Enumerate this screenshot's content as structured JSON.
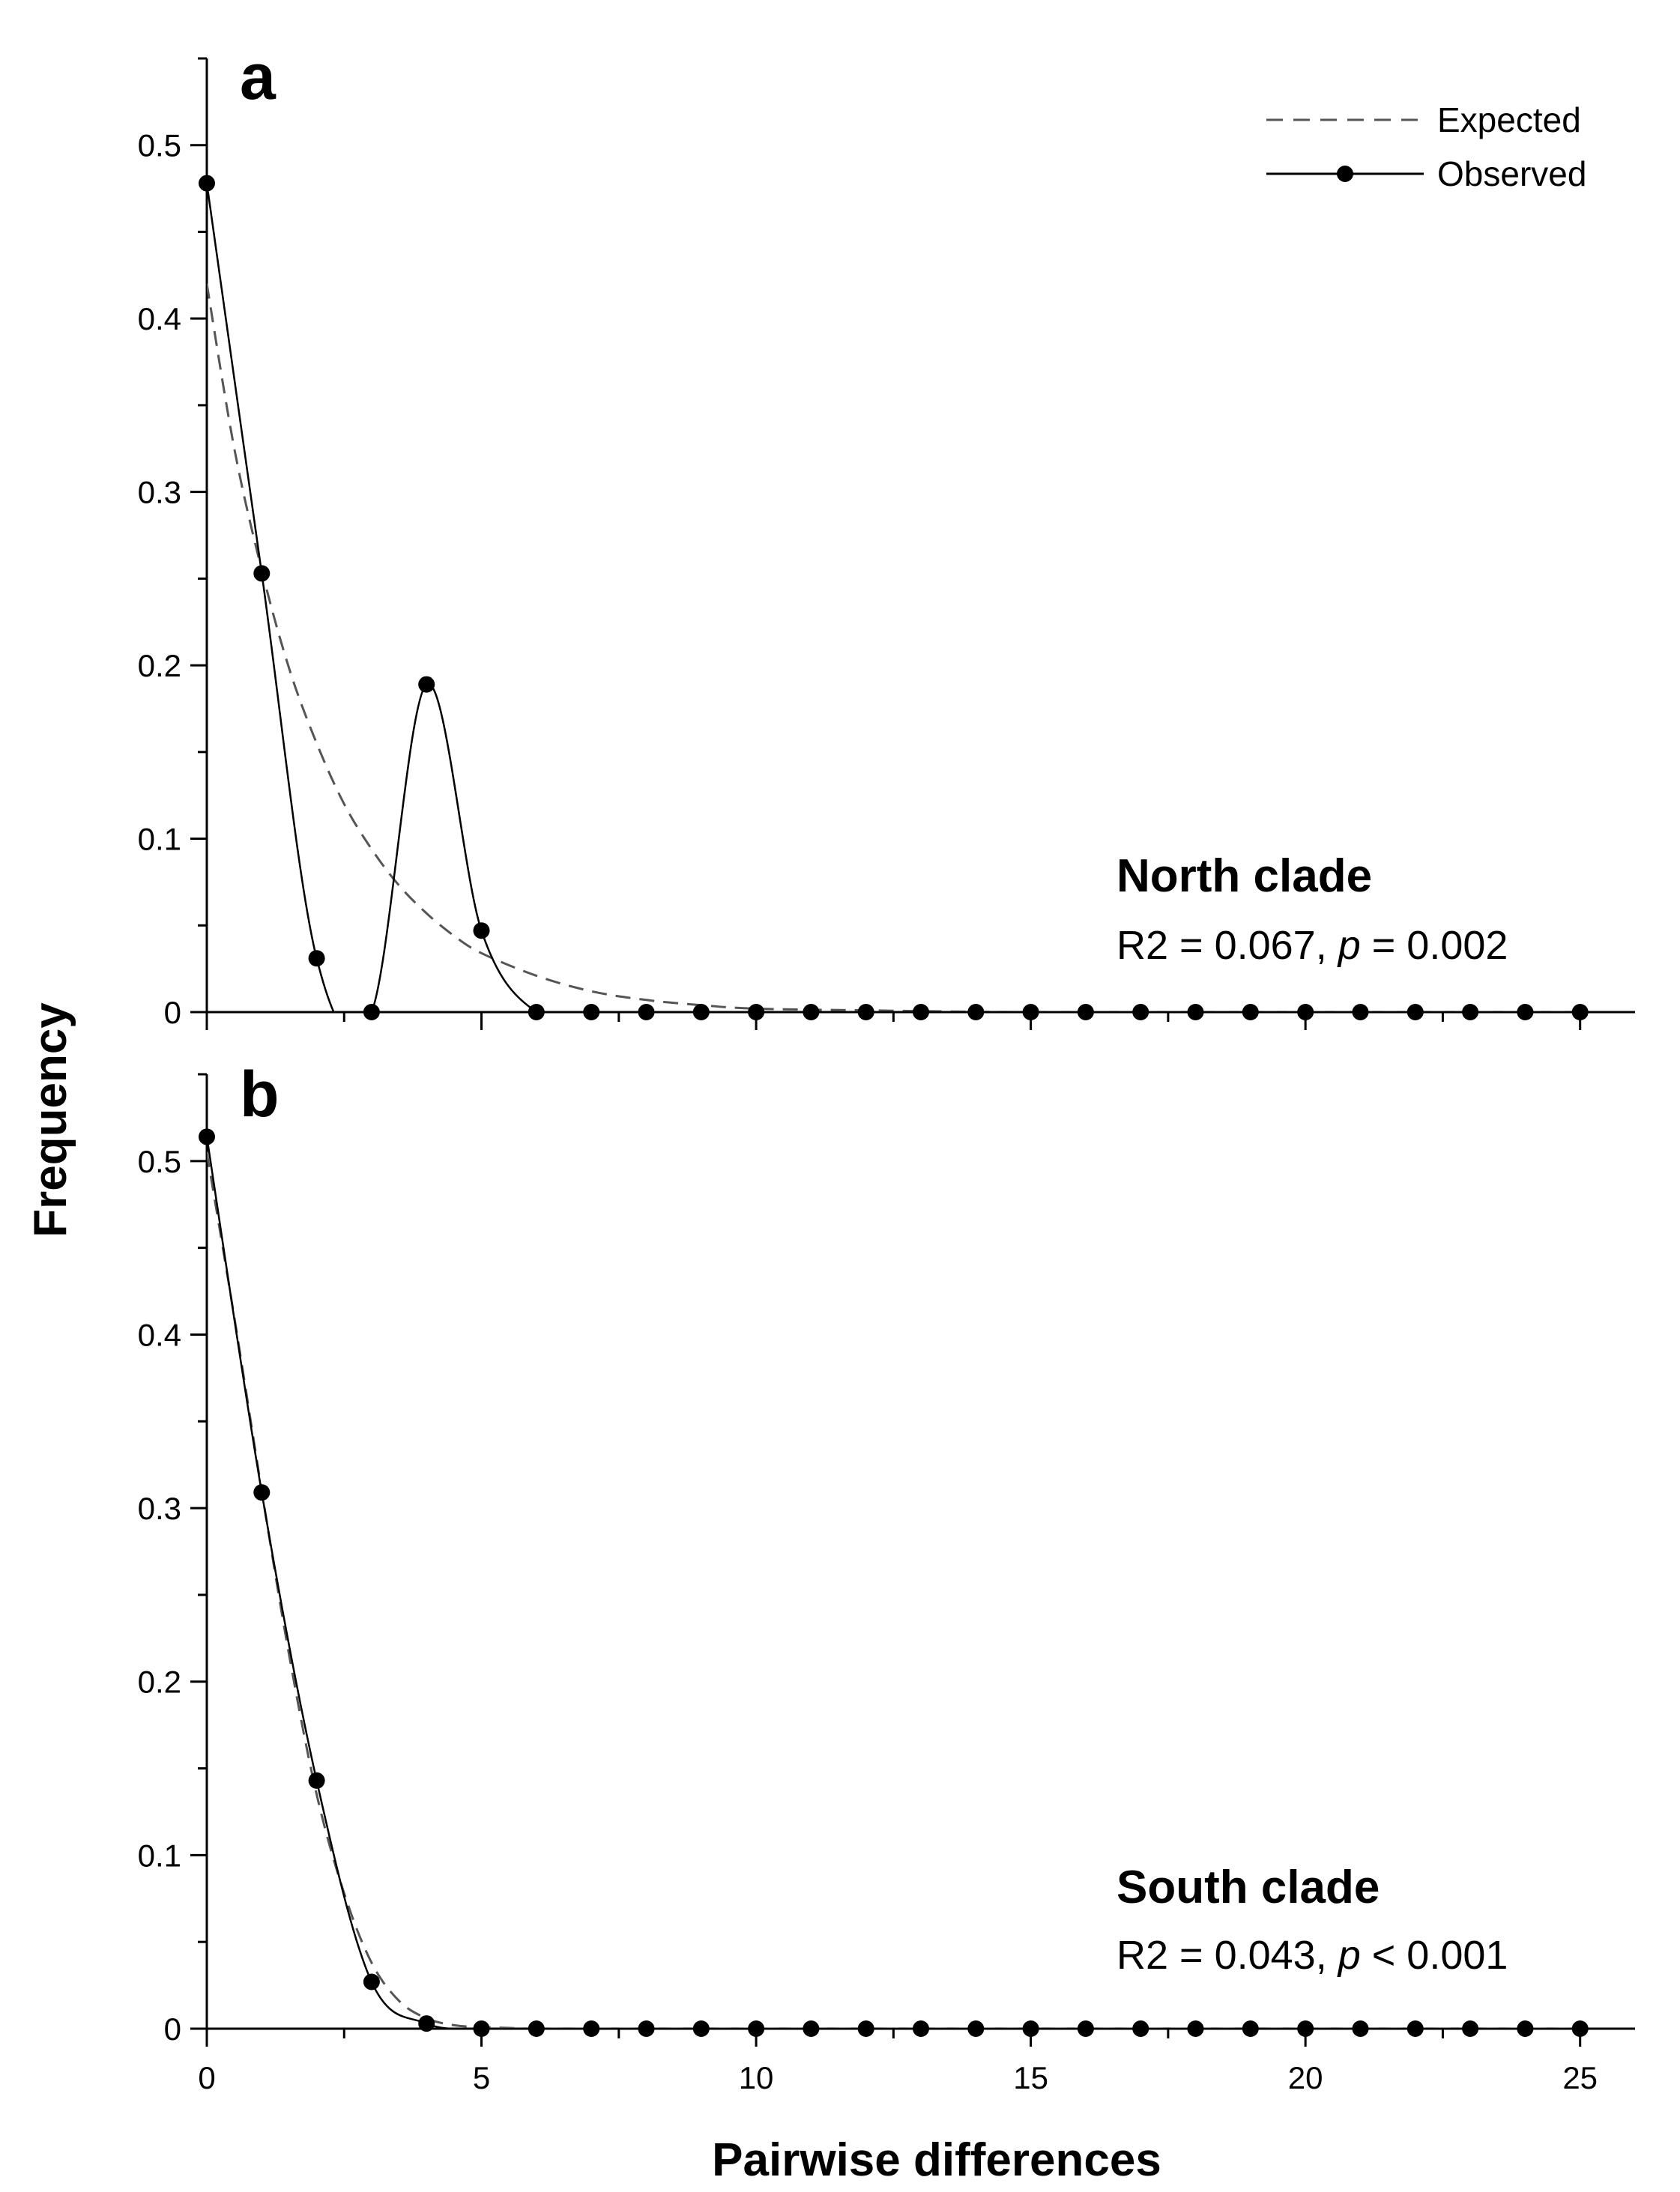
{
  "chart_data": [
    {
      "type": "line",
      "panel_label": "a",
      "clade_title": "North clade",
      "stat_r2": "R2 = 0.067, ",
      "stat_p_symbol": "p",
      "stat_p_value": " = 0.002",
      "xlim": [
        0,
        26
      ],
      "ylim": [
        0,
        0.55
      ],
      "x_ticks": [
        0,
        5,
        10,
        15,
        20,
        25
      ],
      "y_ticks": [
        0,
        0.1,
        0.2,
        0.3,
        0.4,
        0.5
      ],
      "y_tick_labels": [
        "0",
        "0.1",
        "0.2",
        "0.3",
        "0.4",
        "0.5"
      ],
      "series": [
        {
          "name": "Expected",
          "style": "dashed",
          "x": [
            0,
            0.5,
            1,
            1.5,
            2,
            2.5,
            3,
            3.5,
            4,
            4.5,
            5,
            6,
            7,
            8,
            9,
            10,
            12,
            15,
            20,
            25
          ],
          "y": [
            0.42,
            0.325,
            0.255,
            0.198,
            0.155,
            0.12,
            0.094,
            0.073,
            0.057,
            0.044,
            0.034,
            0.021,
            0.012,
            0.007,
            0.004,
            0.002,
            0.001,
            0,
            0,
            0
          ]
        },
        {
          "name": "Observed",
          "style": "solid-markers",
          "x": [
            0,
            1,
            2,
            3,
            4,
            5,
            6,
            7,
            8,
            9,
            10,
            11,
            12,
            13,
            14,
            15,
            16,
            17,
            18,
            19,
            20,
            21,
            22,
            23,
            24,
            25
          ],
          "y": [
            0.478,
            0.253,
            0.031,
            0,
            0.189,
            0.047,
            0,
            0,
            0,
            0,
            0,
            0,
            0,
            0,
            0,
            0,
            0,
            0,
            0,
            0,
            0,
            0,
            0,
            0,
            0,
            0
          ]
        }
      ]
    },
    {
      "type": "line",
      "panel_label": "b",
      "clade_title": "South clade",
      "stat_r2": "R2 = 0.043, ",
      "stat_p_symbol": "p",
      "stat_p_value": " < 0.001",
      "xlim": [
        0,
        26
      ],
      "ylim": [
        0,
        0.55
      ],
      "x_ticks": [
        0,
        5,
        10,
        15,
        20,
        25
      ],
      "x_tick_labels": [
        "0",
        "5",
        "10",
        "15",
        "20",
        "25"
      ],
      "y_ticks": [
        0,
        0.1,
        0.2,
        0.3,
        0.4,
        0.5
      ],
      "y_tick_labels": [
        "0",
        "0.1",
        "0.2",
        "0.3",
        "0.4",
        "0.5"
      ],
      "series": [
        {
          "name": "Expected",
          "style": "dashed",
          "x": [
            0,
            0.5,
            1,
            1.5,
            2,
            2.5,
            3,
            3.5,
            4,
            4.5,
            5,
            6,
            7,
            8,
            10,
            15,
            20,
            25
          ],
          "y": [
            0.505,
            0.41,
            0.31,
            0.215,
            0.135,
            0.078,
            0.038,
            0.016,
            0.006,
            0.002,
            0.001,
            0,
            0,
            0,
            0,
            0,
            0,
            0
          ]
        },
        {
          "name": "Observed",
          "style": "solid-markers",
          "x": [
            0,
            1,
            2,
            3,
            4,
            5,
            6,
            7,
            8,
            9,
            10,
            11,
            12,
            13,
            14,
            15,
            16,
            17,
            18,
            19,
            20,
            21,
            22,
            23,
            24,
            25
          ],
          "y": [
            0.514,
            0.309,
            0.143,
            0.027,
            0.003,
            0,
            0,
            0,
            0,
            0,
            0,
            0,
            0,
            0,
            0,
            0,
            0,
            0,
            0,
            0,
            0,
            0,
            0,
            0,
            0,
            0
          ]
        }
      ]
    }
  ],
  "ylabel": "Frequency",
  "xlabel": "Pairwise differences",
  "legend": {
    "expected_label": "Expected",
    "observed_label": "Observed"
  }
}
